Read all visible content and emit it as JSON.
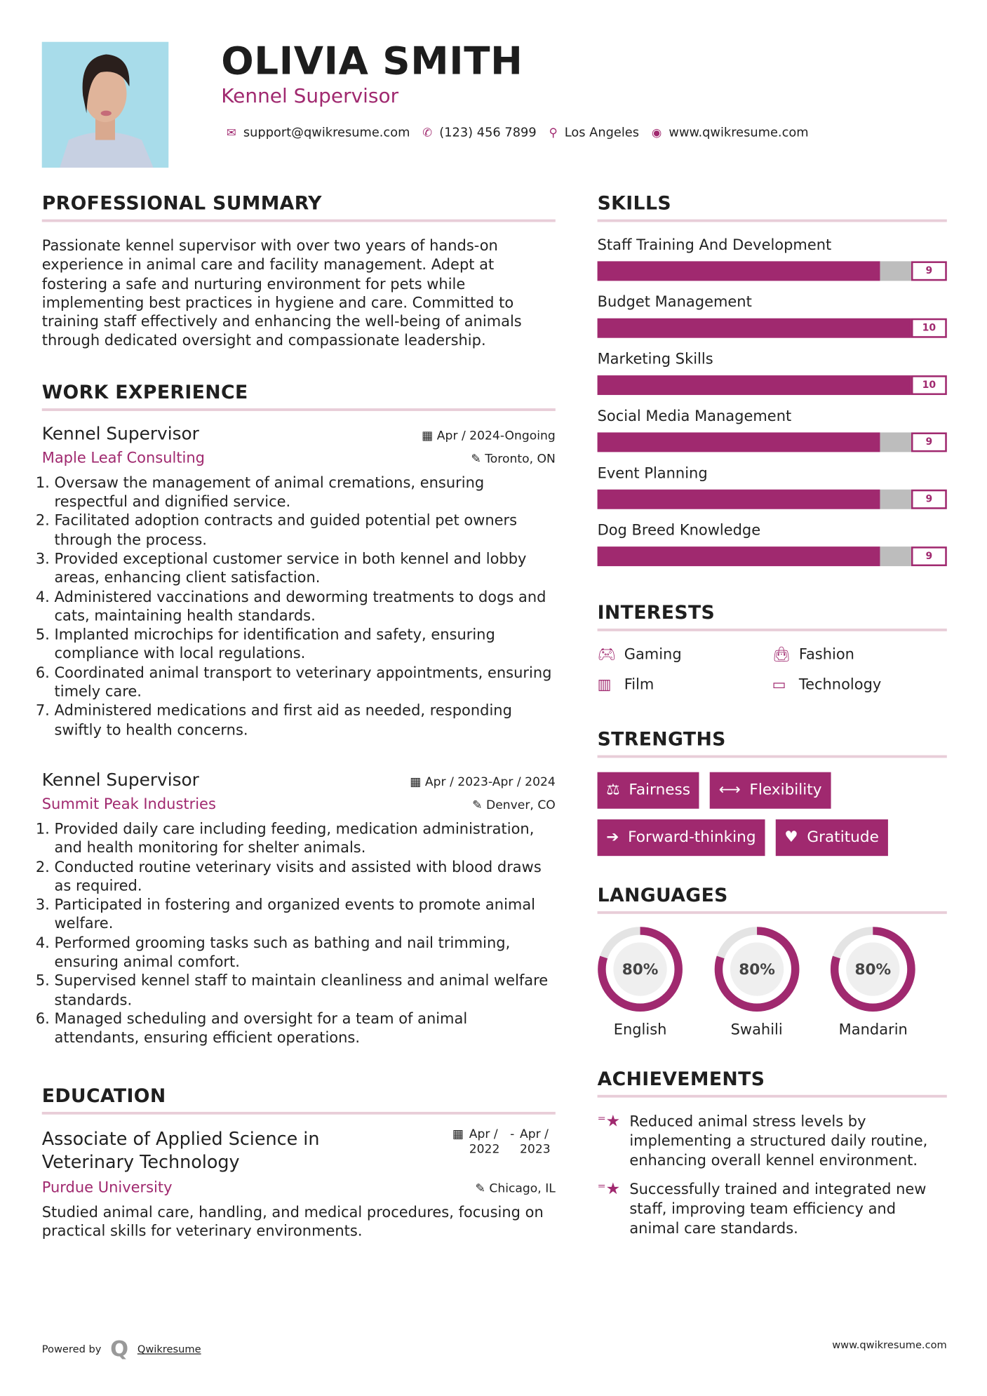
{
  "header": {
    "name": "OLIVIA SMITH",
    "title": "Kennel Supervisor",
    "contacts": [
      {
        "icon": "envelope-icon",
        "text": "support@qwikresume.com"
      },
      {
        "icon": "phone-icon",
        "text": "(123) 456 7899"
      },
      {
        "icon": "map-pin-icon",
        "text": "Los Angeles"
      },
      {
        "icon": "globe-icon",
        "text": "www.qwikresume.com"
      }
    ]
  },
  "colors": {
    "accent": "#a0296f",
    "divider": "#e8cdd8",
    "bar_rest": "#bdbdbd"
  },
  "summary": {
    "heading": "PROFESSIONAL SUMMARY",
    "text": "Passionate kennel supervisor with over two years of hands-on experience in animal care and facility management. Adept at fostering a safe and nurturing environment for pets while implementing best practices in hygiene and care. Committed to training staff effectively and enhancing the well-being of animals through dedicated oversight and compassionate leadership."
  },
  "work": {
    "heading": "WORK EXPERIENCE",
    "jobs": [
      {
        "title": "Kennel Supervisor",
        "date": "Apr / 2024-Ongoing",
        "company": "Maple Leaf Consulting",
        "location": "Toronto, ON",
        "items": [
          "Oversaw the management of animal cremations, ensuring respectful and dignified service.",
          "Facilitated adoption contracts and guided potential pet owners through the process.",
          "Provided exceptional customer service in both kennel and lobby areas, enhancing client satisfaction.",
          "Administered vaccinations and deworming treatments to dogs and cats, maintaining health standards.",
          "Implanted microchips for identification and safety, ensuring compliance with local regulations.",
          "Coordinated animal transport to veterinary appointments, ensuring timely care.",
          "Administered medications and first aid as needed, responding swiftly to health concerns."
        ]
      },
      {
        "title": "Kennel Supervisor",
        "date": "Apr / 2023-Apr / 2024",
        "company": "Summit Peak Industries",
        "location": "Denver, CO",
        "items": [
          "Provided daily care including feeding, medication administration, and health monitoring for shelter animals.",
          "Conducted routine veterinary visits and assisted with blood draws as required.",
          "Participated in fostering and organized events to promote animal welfare.",
          "Performed grooming tasks such as bathing and nail trimming, ensuring animal comfort.",
          "Supervised kennel staff to maintain cleanliness and animal welfare standards.",
          "Managed scheduling and oversight for a team of animal attendants, ensuring efficient operations."
        ]
      }
    ]
  },
  "education": {
    "heading": "EDUCATION",
    "degree": "Associate of Applied Science in Veterinary Technology",
    "date_start": "Apr / 2022",
    "date_end": "Apr / 2023",
    "school": "Purdue University",
    "location": "Chicago, IL",
    "text": "Studied animal care, handling, and medical procedures, focusing on practical skills for veterinary environments."
  },
  "skills": {
    "heading": "SKILLS",
    "max": 10,
    "items": [
      {
        "label": "Staff Training And Development",
        "value": 9
      },
      {
        "label": "Budget Management",
        "value": 10
      },
      {
        "label": "Marketing Skills",
        "value": 10
      },
      {
        "label": "Social Media Management",
        "value": 9
      },
      {
        "label": "Event Planning",
        "value": 9
      },
      {
        "label": "Dog Breed Knowledge",
        "value": 9
      }
    ]
  },
  "interests": {
    "heading": "INTERESTS",
    "items": [
      {
        "icon": "gamepad-icon",
        "label": "Gaming"
      },
      {
        "icon": "shopping-bag-icon",
        "label": "Fashion"
      },
      {
        "icon": "film-icon",
        "label": "Film"
      },
      {
        "icon": "laptop-icon",
        "label": "Technology"
      }
    ]
  },
  "strengths": {
    "heading": "STRENGTHS",
    "items": [
      {
        "icon": "balance-scale-icon",
        "label": "Fairness"
      },
      {
        "icon": "arrows-horizontal-icon",
        "label": "Flexibility"
      },
      {
        "icon": "arrow-right-icon",
        "label": "Forward-thinking"
      },
      {
        "icon": "heart-icon",
        "label": "Gratitude"
      }
    ]
  },
  "languages": {
    "heading": "LANGUAGES",
    "items": [
      {
        "label": "English",
        "percent": 80,
        "text": "80%"
      },
      {
        "label": "Swahili",
        "percent": 80,
        "text": "80%"
      },
      {
        "label": "Mandarin",
        "percent": 80,
        "text": "80%"
      }
    ]
  },
  "achievements": {
    "heading": "ACHIEVEMENTS",
    "items": [
      "Reduced animal stress levels by implementing a structured daily routine, enhancing overall kennel environment.",
      "Successfully trained and integrated new staff, improving team efficiency and animal care standards."
    ]
  },
  "footer": {
    "powered_by": "Powered by",
    "brand": "Qwikresume",
    "url": "www.qwikresume.com"
  }
}
